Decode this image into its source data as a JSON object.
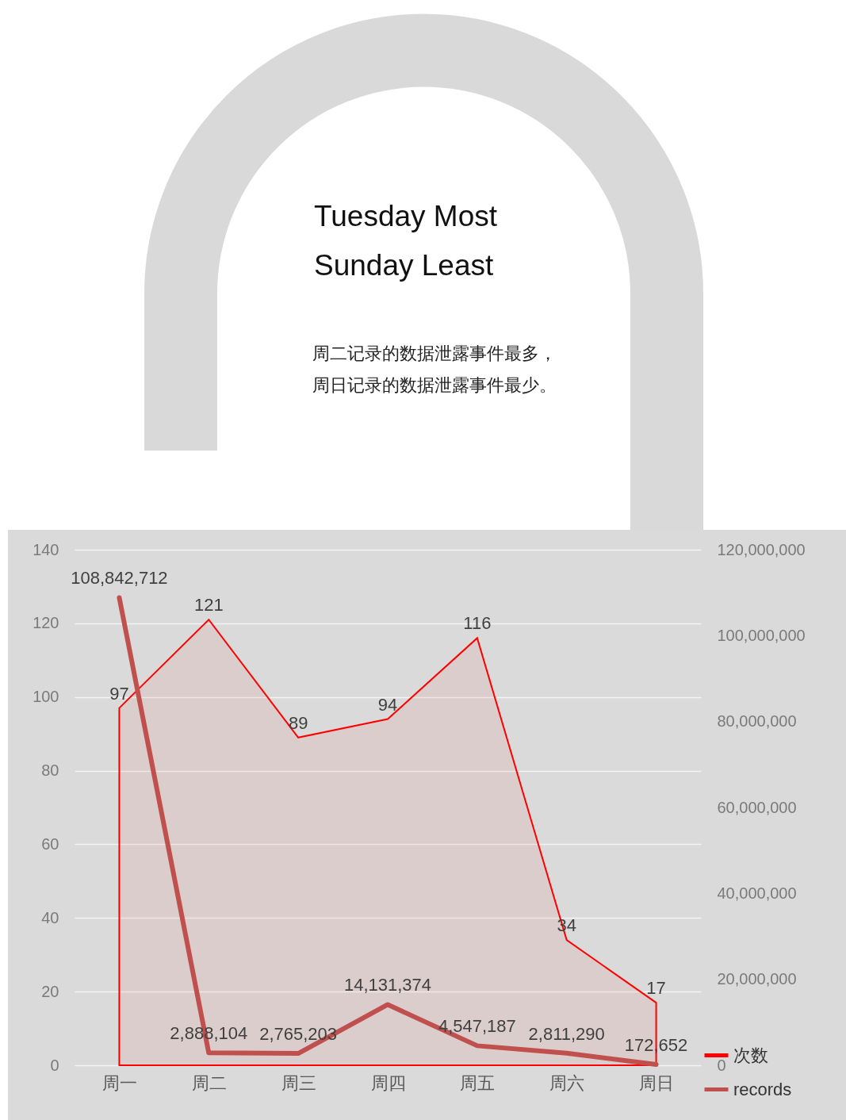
{
  "chart_data": {
    "type": "area",
    "title": "Tuesday Most Sunday Least",
    "subtitle": "周二记录的数据泄露事件最多，周日记录的数据泄露事件最少。",
    "categories": [
      "周一",
      "周二",
      "周三",
      "周四",
      "周五",
      "周六",
      "周日"
    ],
    "series": [
      {
        "name": "次数",
        "color": "#ff0000",
        "values": [
          97,
          121,
          89,
          94,
          116,
          34,
          17
        ],
        "value_labels": [
          "97",
          "121",
          "89",
          "94",
          "116",
          "34",
          "17"
        ]
      },
      {
        "name": "records",
        "type": "line",
        "axis": "y2",
        "color": "#c0504d",
        "values": [
          108842712,
          2888104,
          2765203,
          14131374,
          4547187,
          2811290,
          172652
        ],
        "value_labels": [
          "108,842,712",
          "2,888,104",
          "2,765,203",
          "14,131,374",
          "4,547,187",
          "2,811,290",
          "172,652"
        ]
      }
    ],
    "ylim": [
      0,
      140
    ],
    "yticks": [
      0,
      20,
      40,
      60,
      80,
      100,
      120,
      140
    ],
    "y2lim": [
      0,
      120000000
    ],
    "y2ticks": [
      {
        "value": 0,
        "label": "0"
      },
      {
        "value": 20000000,
        "label": "20,000,000"
      },
      {
        "value": 40000000,
        "label": "40,000,000"
      },
      {
        "value": 60000000,
        "label": "60,000,000"
      },
      {
        "value": 80000000,
        "label": "80,000,000"
      },
      {
        "value": 100000000,
        "label": "100,000,000"
      },
      {
        "value": 120000000,
        "label": "120,000,000"
      }
    ],
    "grid": "y",
    "legend": "bottom right"
  }
}
